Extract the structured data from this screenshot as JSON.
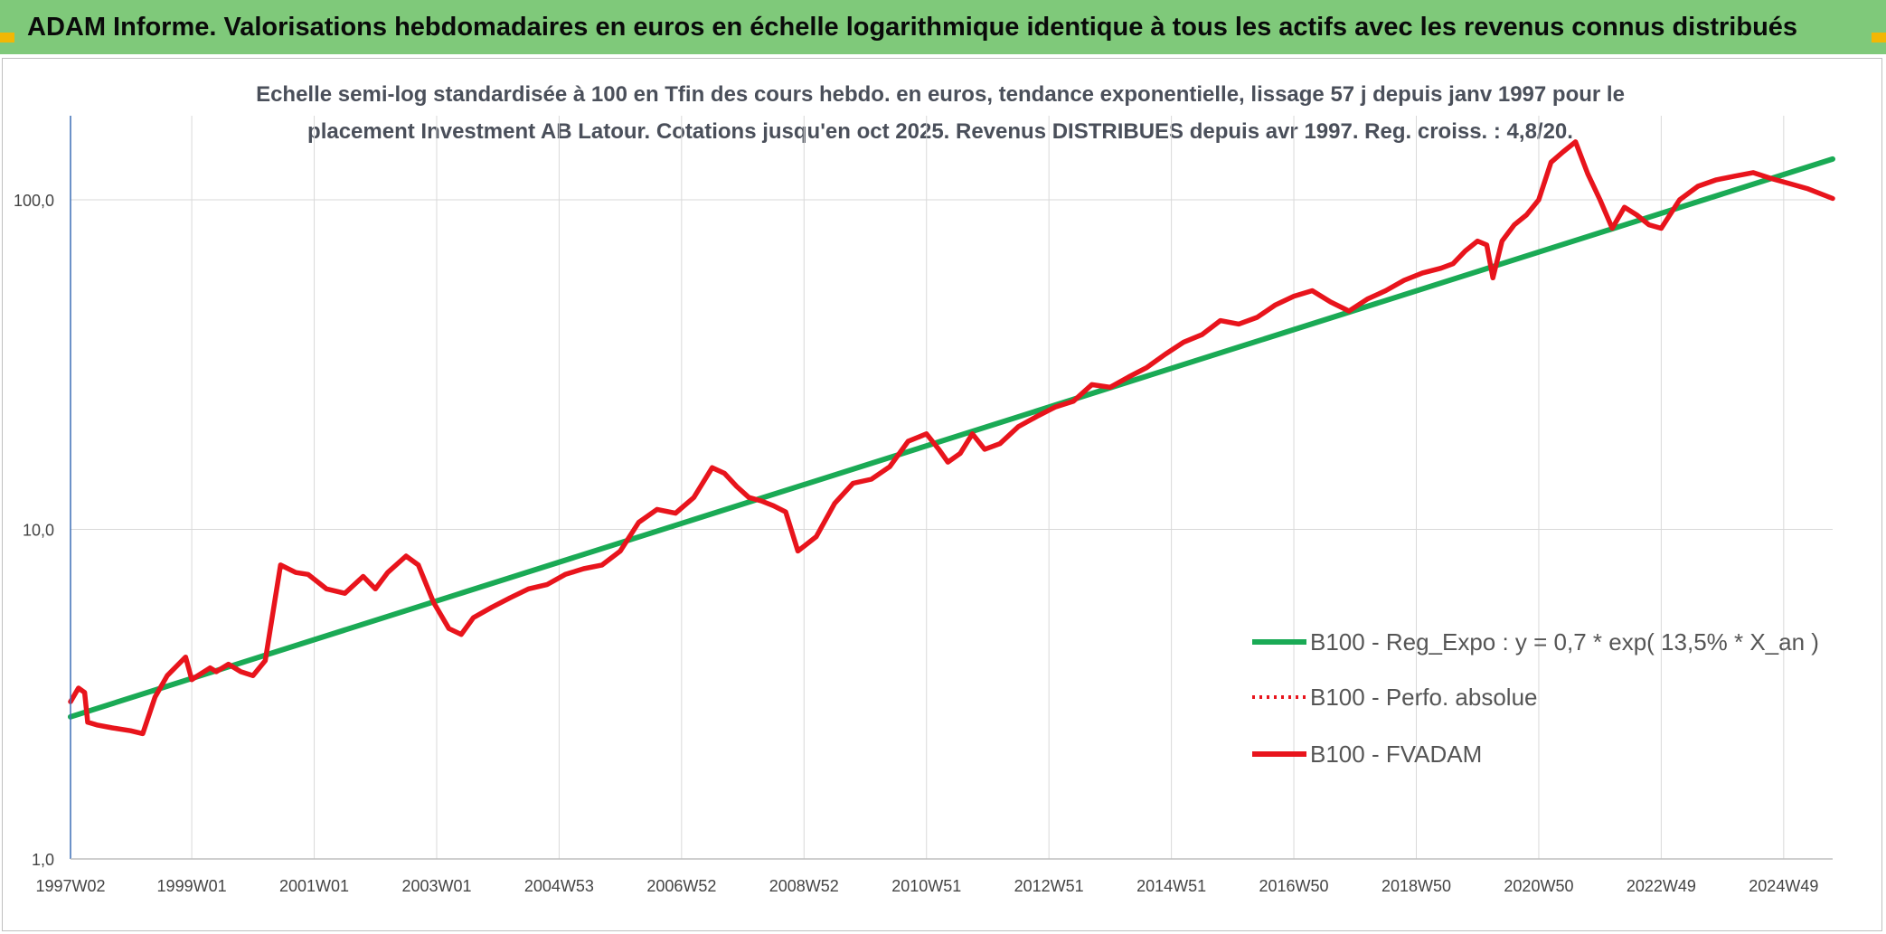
{
  "header": {
    "title": "ADAM Informe. Valorisations hebdomadaires en euros en échelle logarithmique identique à tous les actifs avec les revenus connus distribués"
  },
  "colors": {
    "banner": "#7fc97a",
    "trend": "#1aaa55",
    "series": "#e8141c",
    "corner": "#f2b705"
  },
  "chart_data": {
    "type": "line",
    "title": "Echelle semi-log standardisée à 100 en Tfin des cours hebdo. en euros, tendance exponentielle, lissage 57 j depuis janv 1997 pour le placement Investment AB Latour. Cotations jusqu'en oct 2025. Revenus DISTRIBUES depuis avr 1997. Reg. croiss. : 4,8/20.",
    "title_lines": [
      "Echelle semi-log standardisée à 100 en Tfin des cours hebdo. en euros, tendance exponentielle, lissage 57 j depuis janv 1997 pour le",
      "placement Investment AB Latour. Cotations jusqu'en oct 2025. Revenus DISTRIBUES depuis avr 1997. Reg. croiss. : 4,8/20."
    ],
    "y_scale": "log",
    "ylim": [
      1,
      180
    ],
    "y_ticks": [
      1,
      10,
      100
    ],
    "y_tick_labels": [
      "1,0",
      "10,0",
      "100,0"
    ],
    "xlim": [
      1997.02,
      2025.8
    ],
    "x_ticks": [
      1997.02,
      1999.0,
      2001.0,
      2003.0,
      2005.0,
      2007.0,
      2009.0,
      2011.0,
      2013.0,
      2015.0,
      2017.0,
      2019.0,
      2021.0,
      2023.0,
      2025.0
    ],
    "x_tick_labels": [
      "1997W02",
      "1999W01",
      "2001W01",
      "2003W01",
      "2004W53",
      "2006W52",
      "2008W52",
      "2010W51",
      "2012W51",
      "2014W51",
      "2016W50",
      "2018W50",
      "2020W50",
      "2022W49",
      "2024W49"
    ],
    "grid": true,
    "legend_position": "bottom-right",
    "series": [
      {
        "name": "B100 - Reg_Expo : y = 0,7 * exp( 13,5% *  X_an )",
        "style": "solid",
        "color": "#1aaa55",
        "x": [
          1997.02,
          2025.8
        ],
        "y": [
          2.7,
          133
        ]
      },
      {
        "name": "B100 - Perfo. absolue",
        "style": "dotted",
        "color": "#e8141c",
        "x": [],
        "y": []
      },
      {
        "name": "B100 - FVADAM",
        "style": "solid",
        "color": "#e8141c",
        "x": [
          1997.02,
          1997.15,
          1997.25,
          1997.3,
          1997.45,
          1997.7,
          1998.0,
          1998.2,
          1998.4,
          1998.6,
          1998.9,
          1999.0,
          1999.1,
          1999.3,
          1999.4,
          1999.6,
          1999.8,
          2000.0,
          2000.2,
          2000.45,
          2000.7,
          2000.9,
          2001.2,
          2001.5,
          2001.8,
          2002.0,
          2002.2,
          2002.5,
          2002.7,
          2002.95,
          2003.2,
          2003.4,
          2003.6,
          2003.9,
          2004.2,
          2004.5,
          2004.8,
          2005.1,
          2005.4,
          2005.7,
          2006.0,
          2006.3,
          2006.6,
          2006.9,
          2007.2,
          2007.5,
          2007.7,
          2007.9,
          2008.1,
          2008.3,
          2008.5,
          2008.7,
          2008.9,
          2009.2,
          2009.5,
          2009.8,
          2010.1,
          2010.4,
          2010.7,
          2011.0,
          2011.2,
          2011.35,
          2011.55,
          2011.75,
          2011.95,
          2012.2,
          2012.5,
          2012.8,
          2013.1,
          2013.4,
          2013.7,
          2014.0,
          2014.3,
          2014.6,
          2014.9,
          2015.2,
          2015.5,
          2015.8,
          2016.1,
          2016.4,
          2016.7,
          2017.0,
          2017.3,
          2017.6,
          2017.9,
          2018.2,
          2018.5,
          2018.8,
          2019.1,
          2019.4,
          2019.6,
          2019.8,
          2020.0,
          2020.15,
          2020.25,
          2020.4,
          2020.6,
          2020.8,
          2021.0,
          2021.2,
          2021.4,
          2021.6,
          2021.8,
          2022.0,
          2022.2,
          2022.4,
          2022.6,
          2022.8,
          2023.0,
          2023.3,
          2023.6,
          2023.9,
          2024.2,
          2024.5,
          2024.8,
          2025.1,
          2025.4,
          2025.8
        ],
        "y": [
          3.0,
          3.3,
          3.2,
          2.6,
          2.55,
          2.5,
          2.45,
          2.4,
          3.1,
          3.6,
          4.1,
          3.5,
          3.6,
          3.8,
          3.7,
          3.9,
          3.7,
          3.6,
          4.0,
          7.8,
          7.4,
          7.3,
          6.6,
          6.4,
          7.2,
          6.6,
          7.4,
          8.3,
          7.8,
          6.0,
          5.0,
          4.8,
          5.4,
          5.8,
          6.2,
          6.6,
          6.8,
          7.3,
          7.6,
          7.8,
          8.6,
          10.5,
          11.5,
          11.2,
          12.5,
          15.4,
          14.8,
          13.5,
          12.5,
          12.2,
          11.8,
          11.3,
          8.6,
          9.5,
          12.0,
          13.8,
          14.2,
          15.5,
          18.5,
          19.5,
          17.5,
          16.0,
          17.0,
          19.5,
          17.5,
          18.2,
          20.5,
          22.0,
          23.5,
          24.5,
          27.5,
          27.0,
          29.0,
          31.0,
          34.0,
          37.0,
          39.0,
          43.0,
          42.0,
          44.0,
          48.0,
          51.0,
          53.0,
          49.0,
          46.0,
          50.0,
          53.0,
          57.0,
          60.0,
          62.0,
          64.0,
          70.0,
          75.0,
          73.0,
          58.0,
          75.0,
          84.0,
          90.0,
          100.0,
          130.0,
          140.0,
          150.0,
          120.0,
          100.0,
          82.0,
          95.0,
          90.0,
          84.0,
          82.0,
          100.0,
          110.0,
          115.0,
          118.0,
          121.0,
          116.0,
          112.0,
          108.0,
          101.0
        ]
      }
    ]
  }
}
